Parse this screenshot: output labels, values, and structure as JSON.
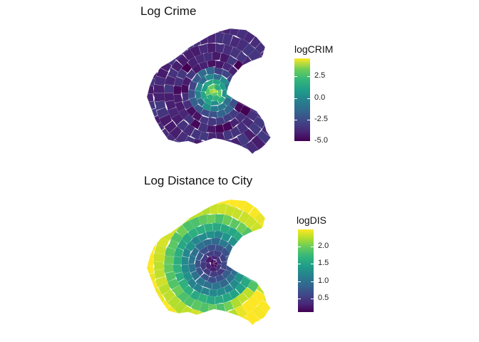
{
  "maps": [
    {
      "id": "crime",
      "title": "Log Crime",
      "legend": {
        "title": "logCRIM",
        "range": [
          -5.0,
          4.6
        ],
        "ticks": [
          {
            "value": 2.5,
            "label": "2.5"
          },
          {
            "value": 0.0,
            "label": "0.0"
          },
          {
            "value": -2.5,
            "label": "-2.5"
          },
          {
            "value": -5.0,
            "label": "-5.0"
          }
        ]
      },
      "colors": {
        "low": "#440154",
        "mid": "#21918c",
        "high": "#fde725"
      }
    },
    {
      "id": "distance",
      "title": "Log Distance to City",
      "legend": {
        "title": "logDIS",
        "range": [
          0.1,
          2.5
        ],
        "ticks": [
          {
            "value": 2.0,
            "label": "2.0"
          },
          {
            "value": 1.5,
            "label": "1.5"
          },
          {
            "value": 1.0,
            "label": "1.0"
          },
          {
            "value": 0.5,
            "label": "0.5"
          }
        ]
      },
      "colors": {
        "low": "#440154",
        "mid": "#21918c",
        "high": "#fde725"
      }
    }
  ]
}
